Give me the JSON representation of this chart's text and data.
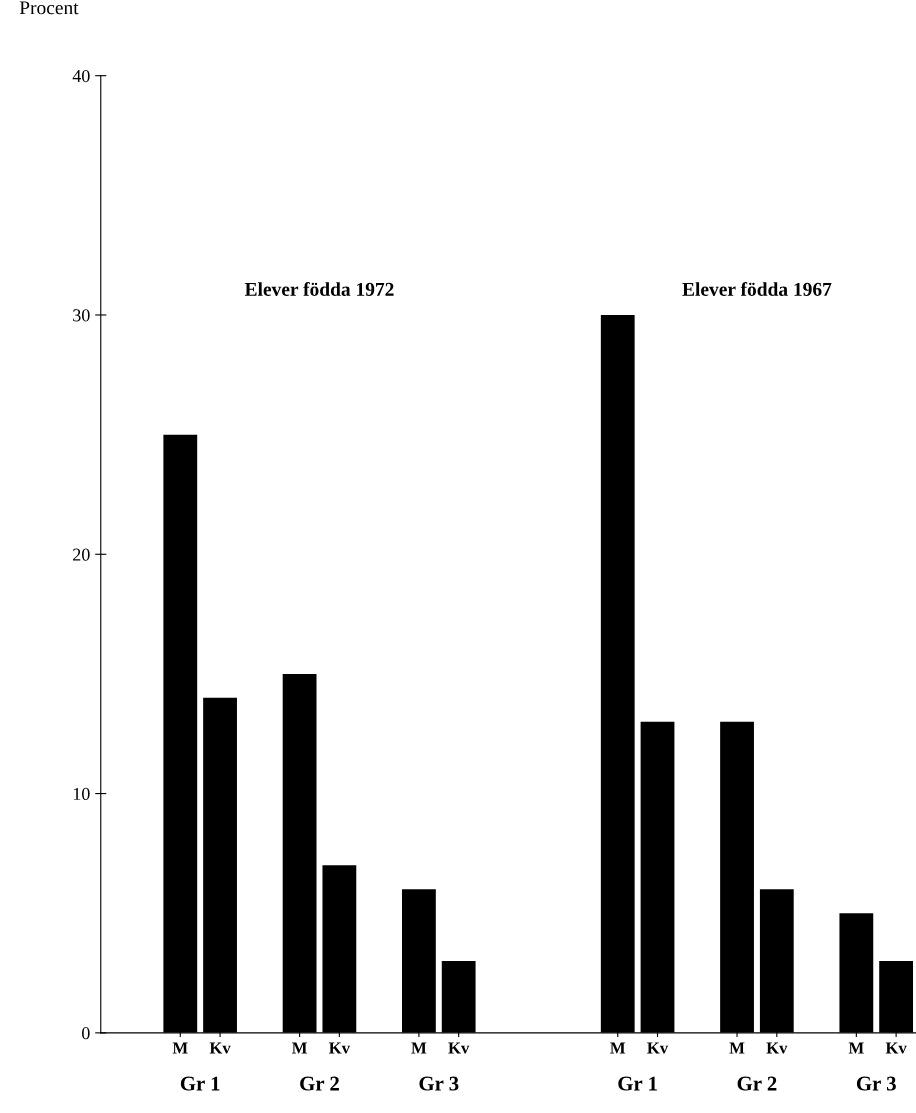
{
  "chart_data": {
    "type": "bar",
    "ylabel": "Procent",
    "categories": [
      "M",
      "Kv",
      null,
      "M",
      "Kv",
      null,
      "M",
      "Kv",
      null,
      null,
      null,
      "M",
      "Kv",
      null,
      "M",
      "Kv",
      null,
      "M",
      "Kv"
    ],
    "values": [
      25,
      14,
      null,
      15,
      7,
      null,
      6,
      3,
      null,
      null,
      null,
      30,
      13,
      null,
      13,
      6,
      null,
      5,
      3
    ],
    "color": "#000000",
    "ylim": [
      0,
      40
    ],
    "yticks": [
      0,
      10,
      20,
      30,
      40
    ],
    "annotations": [
      "Elever födda 1972",
      "Elever födda 1967",
      "Gr 1",
      "Gr 2",
      "Gr 3",
      "Gr 1",
      "Gr 2",
      "Gr 3"
    ],
    "grid": false,
    "legend": false
  }
}
